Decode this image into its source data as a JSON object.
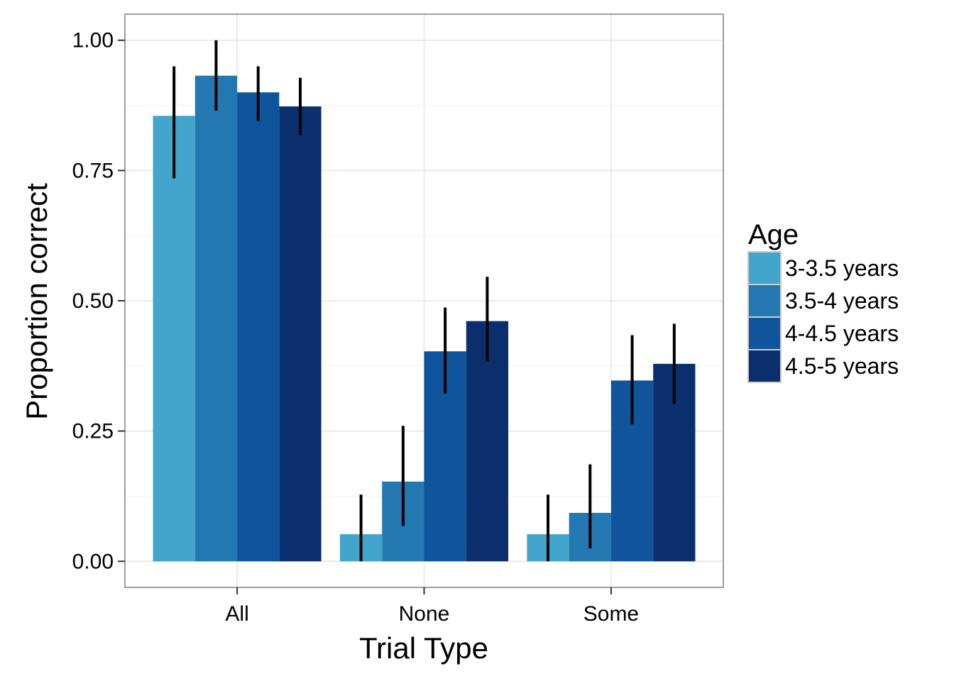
{
  "chart_data": {
    "type": "bar",
    "title": "",
    "xlabel": "Trial Type",
    "ylabel": "Proportion correct",
    "categories": [
      "All",
      "None",
      "Some"
    ],
    "ylim": [
      -0.05,
      1.05
    ],
    "yticks": [
      0,
      0.25,
      0.5,
      0.75,
      1.0
    ],
    "ytick_labels": [
      "0.00",
      "0.25",
      "0.50",
      "0.75",
      "1.00"
    ],
    "grid": true,
    "legend": {
      "title": "Age",
      "placement": "right"
    },
    "series": [
      {
        "name": "3-3.5 years",
        "color": "#42a5cb",
        "values": [
          0.855,
          0.052,
          0.052
        ],
        "error_low": [
          0.735,
          0.0,
          0.0
        ],
        "error_high": [
          0.95,
          0.128,
          0.128
        ]
      },
      {
        "name": "3.5-4 years",
        "color": "#2478b1",
        "values": [
          0.932,
          0.153,
          0.093
        ],
        "error_low": [
          0.865,
          0.068,
          0.025
        ],
        "error_high": [
          1.0,
          0.26,
          0.186
        ]
      },
      {
        "name": "4-4.5 years",
        "color": "#10549c",
        "values": [
          0.9,
          0.403,
          0.347
        ],
        "error_low": [
          0.845,
          0.322,
          0.263
        ],
        "error_high": [
          0.95,
          0.487,
          0.434
        ]
      },
      {
        "name": "4.5-5 years",
        "color": "#0b2f6c",
        "values": [
          0.873,
          0.461,
          0.379
        ],
        "error_low": [
          0.818,
          0.384,
          0.302
        ],
        "error_high": [
          0.928,
          0.546,
          0.456
        ]
      }
    ]
  }
}
